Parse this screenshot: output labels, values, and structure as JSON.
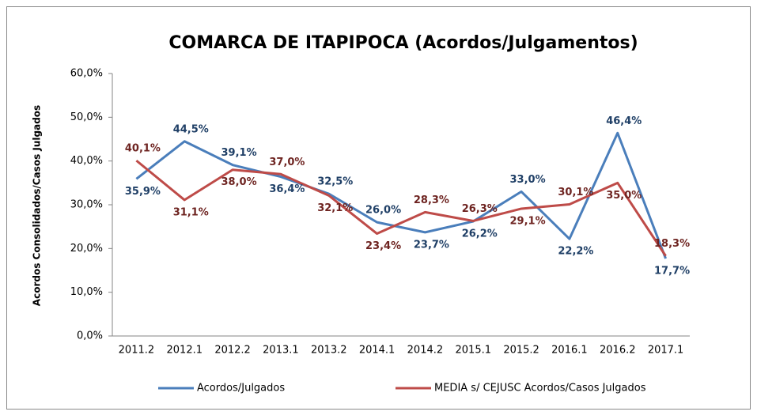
{
  "chart_data": {
    "type": "line",
    "title": "COMARCA DE ITAPIPOCA (Acordos/Julgamentos)",
    "y_label": "Acordos Consolidados/Casos Julgados",
    "categories": [
      "2011.2",
      "2012.1",
      "2012.2",
      "2013.1",
      "2013.2",
      "2014.1",
      "2014.2",
      "2015.1",
      "2015.2",
      "2016.1",
      "2016.2",
      "2017.1"
    ],
    "series": [
      {
        "name": "Acordos/Julgados",
        "color": "#4a7ebb",
        "values": [
          35.9,
          44.5,
          39.1,
          36.4,
          32.5,
          26.0,
          23.7,
          26.2,
          33.0,
          22.2,
          46.4,
          17.7
        ],
        "value_labels": [
          "35,9%",
          "44,5%",
          "39,1%",
          "36,4%",
          "32,5%",
          "26,0%",
          "23,7%",
          "26,2%",
          "33,0%",
          "22,2%",
          "46,4%",
          "17,7%"
        ]
      },
      {
        "name": "MEDIA s/ CEJUSC Acordos/Casos Julgados",
        "color": "#be4b48",
        "values": [
          40.1,
          31.1,
          38.0,
          37.0,
          32.1,
          23.4,
          28.3,
          26.3,
          29.1,
          30.1,
          35.0,
          18.3
        ],
        "value_labels": [
          "40,1%",
          "31,1%",
          "38,0%",
          "37,0%",
          "32,1%",
          "23,4%",
          "28,3%",
          "26,3%",
          "29,1%",
          "30,1%",
          "35,0%",
          "18,3%"
        ]
      }
    ],
    "ylim": [
      0,
      60
    ],
    "yticks": [
      {
        "value": 0,
        "label": "0,0%"
      },
      {
        "value": 10,
        "label": "10,0%"
      },
      {
        "value": 20,
        "label": "20,0%"
      },
      {
        "value": 30,
        "label": "30,0%"
      },
      {
        "value": 40,
        "label": "40,0%"
      },
      {
        "value": 50,
        "label": "50,0%"
      },
      {
        "value": 60,
        "label": "60,0%"
      }
    ],
    "legend": "bottom"
  }
}
